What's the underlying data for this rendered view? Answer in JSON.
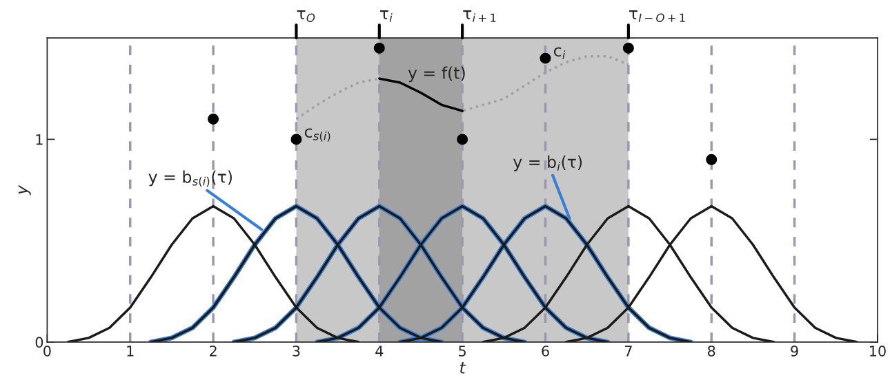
{
  "chart_data": {
    "type": "line",
    "xlabel": "t",
    "ylabel": "y",
    "xlim": [
      0,
      10
    ],
    "xticks": [
      0,
      1,
      2,
      3,
      4,
      5,
      6,
      7,
      8,
      9,
      10
    ],
    "ylim": [
      0,
      1.5
    ],
    "yticks": [
      0,
      1
    ],
    "grid": false,
    "bands": [
      {
        "axis": "x",
        "from": 3,
        "to": 7,
        "color": "#c8c8c8"
      },
      {
        "axis": "x",
        "from": 4,
        "to": 5,
        "color": "#a2a2a2"
      }
    ],
    "ref_lines": [
      {
        "axis": "x",
        "value": 1,
        "color": "#9a98b0",
        "line_style": "dashed"
      },
      {
        "axis": "x",
        "value": 2,
        "color": "#9a98b0",
        "line_style": "dashed"
      },
      {
        "axis": "x",
        "value": 3,
        "color": "#9a98b0",
        "line_style": "dashed",
        "label": "τ$_{O}$"
      },
      {
        "axis": "x",
        "value": 4,
        "color": "#9a98b0",
        "line_style": "dashed",
        "label": "τ$_{i}$"
      },
      {
        "axis": "x",
        "value": 5,
        "color": "#9a98b0",
        "line_style": "dashed",
        "label": "τ$_{i+1}$"
      },
      {
        "axis": "x",
        "value": 6,
        "color": "#9a98b0",
        "line_style": "dashed"
      },
      {
        "axis": "x",
        "value": 7,
        "color": "#9a98b0",
        "line_style": "dashed",
        "label": "τ$_{I−O+1}$"
      },
      {
        "axis": "x",
        "value": 8,
        "color": "#9a98b0",
        "line_style": "dashed"
      },
      {
        "axis": "x",
        "value": 9,
        "color": "#9a98b0",
        "line_style": "dashed"
      }
    ],
    "series": [
      {
        "color": "#3a7fd5",
        "x": [
          1.25,
          1.5,
          1.75,
          2,
          2.25,
          2.5,
          2.75,
          3,
          3.25,
          3.5,
          3.75,
          4,
          4.25,
          4.5,
          4.75
        ],
        "values": [
          0,
          0.02,
          0.07,
          0.17,
          0.32,
          0.48,
          0.61,
          0.67,
          0.61,
          0.48,
          0.32,
          0.17,
          0.07,
          0.02,
          0
        ]
      },
      {
        "color": "#3a7fd5",
        "x": [
          2.25,
          2.5,
          2.75,
          3,
          3.25,
          3.5,
          3.75,
          4,
          4.25,
          4.5,
          4.75,
          5,
          5.25,
          5.5,
          5.75
        ],
        "values": [
          0,
          0.02,
          0.07,
          0.17,
          0.32,
          0.48,
          0.61,
          0.67,
          0.61,
          0.48,
          0.32,
          0.17,
          0.07,
          0.02,
          0
        ]
      },
      {
        "color": "#3a7fd5",
        "x": [
          3.25,
          3.5,
          3.75,
          4,
          4.25,
          4.5,
          4.75,
          5,
          5.25,
          5.5,
          5.75,
          6,
          6.25,
          6.5,
          6.75
        ],
        "values": [
          0,
          0.02,
          0.07,
          0.17,
          0.32,
          0.48,
          0.61,
          0.67,
          0.61,
          0.48,
          0.32,
          0.17,
          0.07,
          0.02,
          0
        ]
      },
      {
        "color": "#3a7fd5",
        "x": [
          4.25,
          4.5,
          4.75,
          5,
          5.25,
          5.5,
          5.75,
          6,
          6.25,
          6.5,
          6.75,
          7,
          7.25,
          7.5,
          7.75
        ],
        "values": [
          0,
          0.02,
          0.07,
          0.17,
          0.32,
          0.48,
          0.61,
          0.67,
          0.61,
          0.48,
          0.32,
          0.17,
          0.07,
          0.02,
          0
        ]
      },
      {
        "color": "#1a1a1a",
        "x": [
          0.25,
          0.5,
          0.75,
          1,
          1.25,
          1.5,
          1.75,
          2,
          2.25,
          2.5,
          2.75,
          3,
          3.25,
          3.5,
          3.75
        ],
        "values": [
          0,
          0.02,
          0.07,
          0.17,
          0.32,
          0.48,
          0.61,
          0.67,
          0.61,
          0.48,
          0.32,
          0.17,
          0.07,
          0.02,
          0
        ]
      },
      {
        "color": "#1a1a1a",
        "x": [
          1.25,
          1.5,
          1.75,
          2,
          2.25,
          2.5,
          2.75,
          3,
          3.25,
          3.5,
          3.75,
          4,
          4.25,
          4.5,
          4.75
        ],
        "values": [
          0,
          0.02,
          0.07,
          0.17,
          0.32,
          0.48,
          0.61,
          0.67,
          0.61,
          0.48,
          0.32,
          0.17,
          0.07,
          0.02,
          0
        ]
      },
      {
        "color": "#1a1a1a",
        "x": [
          2.25,
          2.5,
          2.75,
          3,
          3.25,
          3.5,
          3.75,
          4,
          4.25,
          4.5,
          4.75,
          5,
          5.25,
          5.5,
          5.75
        ],
        "values": [
          0,
          0.02,
          0.07,
          0.17,
          0.32,
          0.48,
          0.61,
          0.67,
          0.61,
          0.48,
          0.32,
          0.17,
          0.07,
          0.02,
          0
        ]
      },
      {
        "color": "#1a1a1a",
        "x": [
          3.25,
          3.5,
          3.75,
          4,
          4.25,
          4.5,
          4.75,
          5,
          5.25,
          5.5,
          5.75,
          6,
          6.25,
          6.5,
          6.75
        ],
        "values": [
          0,
          0.02,
          0.07,
          0.17,
          0.32,
          0.48,
          0.61,
          0.67,
          0.61,
          0.48,
          0.32,
          0.17,
          0.07,
          0.02,
          0
        ]
      },
      {
        "color": "#1a1a1a",
        "x": [
          4.25,
          4.5,
          4.75,
          5,
          5.25,
          5.5,
          5.75,
          6,
          6.25,
          6.5,
          6.75,
          7,
          7.25,
          7.5,
          7.75
        ],
        "values": [
          0,
          0.02,
          0.07,
          0.17,
          0.32,
          0.48,
          0.61,
          0.67,
          0.61,
          0.48,
          0.32,
          0.17,
          0.07,
          0.02,
          0
        ]
      },
      {
        "color": "#1a1a1a",
        "x": [
          5.25,
          5.5,
          5.75,
          6,
          6.25,
          6.5,
          6.75,
          7,
          7.25,
          7.5,
          7.75,
          8,
          8.25,
          8.5,
          8.75
        ],
        "values": [
          0,
          0.02,
          0.07,
          0.17,
          0.32,
          0.48,
          0.61,
          0.67,
          0.61,
          0.48,
          0.32,
          0.17,
          0.07,
          0.02,
          0
        ]
      },
      {
        "color": "#1a1a1a",
        "x": [
          6.25,
          6.5,
          6.75,
          7,
          7.25,
          7.5,
          7.75,
          8,
          8.25,
          8.5,
          8.75,
          9,
          9.25,
          9.5,
          9.75
        ],
        "values": [
          0,
          0.02,
          0.07,
          0.17,
          0.32,
          0.48,
          0.61,
          0.67,
          0.61,
          0.48,
          0.32,
          0.17,
          0.07,
          0.02,
          0
        ]
      },
      {
        "color": "#a0a0a0",
        "line_style": "dotted",
        "x": [
          3,
          3.25,
          3.5,
          3.75,
          4,
          4.5,
          5,
          5.5,
          6,
          6.25,
          6.5,
          6.75,
          7
        ],
        "values": [
          1.1,
          1.17,
          1.23,
          1.28,
          1.3,
          1.23,
          1.14,
          1.2,
          1.33,
          1.38,
          1.41,
          1.41,
          1.37
        ]
      },
      {
        "color": "#000000",
        "x": [
          4,
          4.25,
          4.5,
          4.75,
          5
        ],
        "values": [
          1.3,
          1.28,
          1.23,
          1.17,
          1.14
        ]
      },
      {
        "type": "scatter",
        "color": "#000000",
        "marker": "circle",
        "x": [
          2,
          3,
          4,
          5,
          6,
          7,
          8
        ],
        "values": [
          1.1,
          1.0,
          1.45,
          1.0,
          1.4,
          1.45,
          0.9
        ]
      }
    ],
    "annotations": [
      {
        "text": "y = f(t)",
        "x": 4.25,
        "y": 1.28
      },
      {
        "text": "c$_{s(i)}$",
        "x": 3,
        "y": 1.0
      },
      {
        "text": "c$_{i}$",
        "x": 6,
        "y": 1.4
      },
      {
        "text": "y = b$_{s(i)}$(τ)",
        "x": 2.6,
        "y": 0.55
      },
      {
        "text": "y = b$_{i}$(τ)",
        "x": 6.3,
        "y": 0.6
      }
    ]
  }
}
